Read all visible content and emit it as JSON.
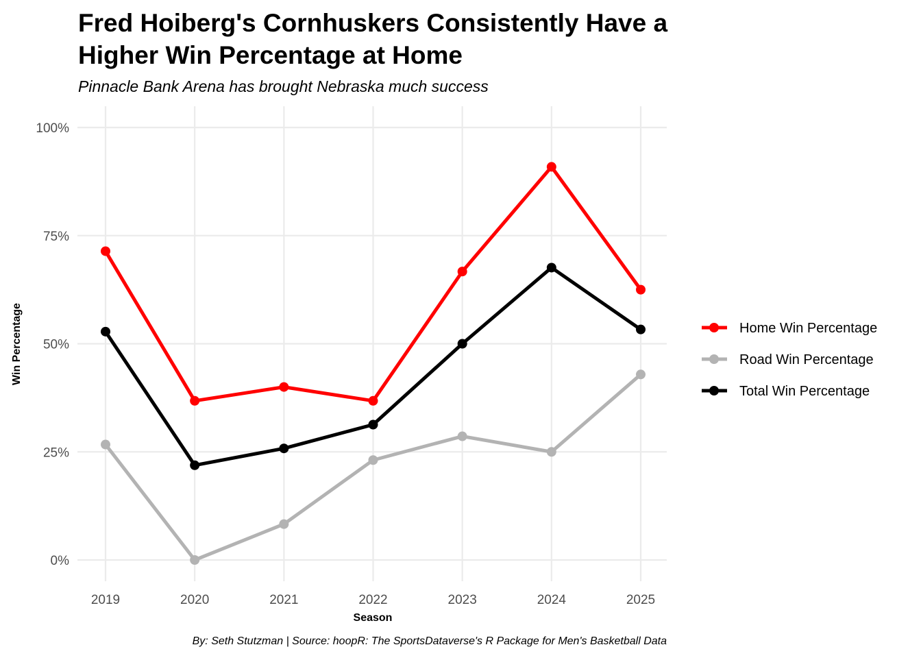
{
  "chart_data": {
    "type": "line",
    "title_lines": [
      "Fred Hoiberg's Cornhuskers Consistently Have a",
      "Higher Win Percentage at Home"
    ],
    "subtitle": "Pinnacle Bank Arena has brought Nebraska much success",
    "xlabel": "Season",
    "ylabel": "Win Percentage",
    "caption": "By: Seth Stutzman | Source: hoopR: The SportsDataverse's R Package for Men's Basketball Data",
    "x": [
      "2019",
      "2020",
      "2021",
      "2022",
      "2023",
      "2024",
      "2025"
    ],
    "ylim": [
      0,
      1
    ],
    "yticks": [
      {
        "value": 0,
        "label": "0%"
      },
      {
        "value": 0.25,
        "label": "25%"
      },
      {
        "value": 0.5,
        "label": "50%"
      },
      {
        "value": 0.75,
        "label": "75%"
      },
      {
        "value": 1,
        "label": "100%"
      }
    ],
    "grid": true,
    "legend_position": "right",
    "series": [
      {
        "name": "Home Win Percentage",
        "color": "#ff0000",
        "values": [
          0.714,
          0.368,
          0.4,
          0.368,
          0.667,
          0.909,
          0.625
        ]
      },
      {
        "name": "Road Win Percentage",
        "color": "#b3b3b3",
        "values": [
          0.267,
          0.0,
          0.083,
          0.231,
          0.286,
          0.25,
          0.429
        ]
      },
      {
        "name": "Total Win Percentage",
        "color": "#000000",
        "values": [
          0.528,
          0.219,
          0.258,
          0.313,
          0.5,
          0.676,
          0.533
        ]
      }
    ]
  }
}
